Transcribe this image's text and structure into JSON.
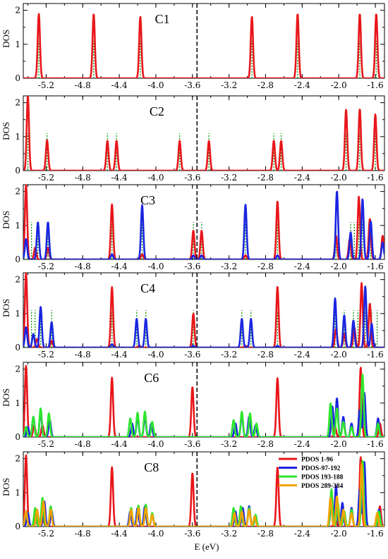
{
  "chart_data": {
    "type": "line",
    "xlabel": "E (eV)",
    "ylabel": "DOS",
    "xlim": [
      -5.45,
      -1.5
    ],
    "ylim": [
      0,
      2.2
    ],
    "xticks": [
      -5.2,
      -4.8,
      -4.4,
      -4.0,
      -3.6,
      -3.2,
      -2.8,
      -2.4,
      -2.0,
      -1.6
    ],
    "xtick_labels": [
      "-5.2",
      "-4.8",
      "-4.4",
      "-4.0",
      "-3.6",
      "-3.2",
      "-2.8",
      "-2.4",
      "-2.0",
      "-1.6"
    ],
    "yticks": [
      0,
      1,
      2
    ],
    "ytick_labels": [
      "0",
      "1",
      "2"
    ],
    "fermi_level": -3.55,
    "colors": {
      "PDOS 1-96": "#e8161b",
      "PDOS-97-192": "#1a25e0",
      "PDOS 193-188": "#2ee62e",
      "PDOS 289-384": "#f5a300",
      "states": "#119911",
      "fermi": "#000000"
    },
    "legend": {
      "placement": "top-right of panel C8",
      "entries": [
        "PDOS 1-96",
        "PDOS-97-192",
        "PDOS 193-188",
        "PDOS 289-384"
      ]
    },
    "panels": [
      {
        "label": "C1",
        "series": [
          {
            "name": "PDOS 1-96",
            "peaks": [
              [
                -5.28,
                1.9
              ],
              [
                -4.68,
                1.9
              ],
              [
                -4.17,
                1.82
              ],
              [
                -2.95,
                1.82
              ],
              [
                -2.45,
                1.9
              ],
              [
                -1.77,
                1.9
              ],
              [
                -1.59,
                1.9
              ]
            ]
          }
        ],
        "states": [
          -5.28,
          -4.68,
          -4.17,
          -2.95,
          -2.45,
          -1.77,
          -1.59
        ]
      },
      {
        "label": "C2",
        "series": [
          {
            "name": "PDOS 1-96",
            "peaks": [
              [
                -5.4,
                2.2
              ],
              [
                -5.19,
                0.9
              ],
              [
                -4.53,
                0.88
              ],
              [
                -4.43,
                0.88
              ],
              [
                -3.74,
                0.88
              ],
              [
                -3.42,
                0.88
              ],
              [
                -2.71,
                0.88
              ],
              [
                -2.63,
                0.88
              ],
              [
                -1.92,
                1.8
              ],
              [
                -1.77,
                1.82
              ],
              [
                -1.6,
                1.66
              ]
            ]
          }
        ],
        "states": [
          -5.4,
          -5.19,
          -4.53,
          -4.43,
          -3.74,
          -3.42,
          -2.71,
          -2.63,
          -1.92,
          -1.77,
          -1.6
        ]
      },
      {
        "label": "C3",
        "series": [
          {
            "name": "PDOS 1-96",
            "peaks": [
              [
                -5.42,
                2.2
              ],
              [
                -5.32,
                0.35
              ],
              [
                -5.18,
                0.35
              ],
              [
                -4.48,
                1.62
              ],
              [
                -4.15,
                0.15
              ],
              [
                -3.59,
                0.85
              ],
              [
                -3.5,
                0.85
              ],
              [
                -3.02,
                0.12
              ],
              [
                -2.67,
                1.72
              ],
              [
                -2.03,
                0.7
              ],
              [
                -1.88,
                0.6
              ],
              [
                -1.78,
                1.85
              ],
              [
                -1.66,
                1.2
              ],
              [
                -1.52,
                0.7
              ]
            ]
          },
          {
            "name": "PDOS-97-192",
            "peaks": [
              [
                -5.42,
                0.6
              ],
              [
                -5.29,
                1.1
              ],
              [
                -5.18,
                1.1
              ],
              [
                -4.48,
                0.15
              ],
              [
                -4.15,
                1.6
              ],
              [
                -3.59,
                0.12
              ],
              [
                -3.5,
                0.12
              ],
              [
                -3.02,
                1.62
              ],
              [
                -2.67,
                0.12
              ],
              [
                -2.02,
                2.02
              ],
              [
                -1.87,
                0.8
              ],
              [
                -1.74,
                1.78
              ],
              [
                -1.65,
                1.12
              ],
              [
                -1.52,
                0.5
              ]
            ]
          }
        ],
        "states": [
          -5.44,
          -5.4,
          -5.36,
          -5.29,
          -5.18,
          -4.48,
          -4.15,
          -3.59,
          -3.5,
          -3.02,
          -2.67,
          -2.03,
          -1.87,
          -1.83,
          -1.78,
          -1.74,
          -1.65
        ]
      },
      {
        "label": "C4",
        "series": [
          {
            "name": "PDOS 1-96",
            "peaks": [
              [
                -5.42,
                2.2
              ],
              [
                -5.3,
                0.25
              ],
              [
                -5.14,
                0.2
              ],
              [
                -4.48,
                1.78
              ],
              [
                -4.18,
                0.05
              ],
              [
                -3.59,
                1.0
              ],
              [
                -3.02,
                0.05
              ],
              [
                -2.67,
                1.8
              ],
              [
                -2.03,
                0.55
              ],
              [
                -1.94,
                0.4
              ],
              [
                -1.83,
                0.6
              ],
              [
                -1.75,
                1.9
              ],
              [
                -1.66,
                1.3
              ]
            ]
          },
          {
            "name": "PDOS-97-192",
            "peaks": [
              [
                -5.42,
                0.6
              ],
              [
                -5.34,
                0.4
              ],
              [
                -5.26,
                1.2
              ],
              [
                -5.14,
                0.75
              ],
              [
                -4.48,
                0.1
              ],
              [
                -4.21,
                0.85
              ],
              [
                -4.11,
                0.85
              ],
              [
                -3.59,
                0.05
              ],
              [
                -3.06,
                0.85
              ],
              [
                -2.96,
                0.85
              ],
              [
                -2.67,
                0.05
              ],
              [
                -2.04,
                1.45
              ],
              [
                -1.94,
                0.95
              ],
              [
                -1.84,
                0.8
              ],
              [
                -1.71,
                1.8
              ],
              [
                -1.64,
                0.7
              ]
            ]
          }
        ],
        "states": [
          -5.44,
          -5.4,
          -5.36,
          -5.32,
          -5.26,
          -5.14,
          -4.48,
          -4.21,
          -4.11,
          -3.59,
          -3.06,
          -2.96,
          -2.67,
          -2.04,
          -1.94,
          -1.84,
          -1.79,
          -1.74,
          -1.71,
          -1.64,
          -1.58
        ]
      },
      {
        "label": "C6",
        "series": [
          {
            "name": "PDOS 1-96",
            "peaks": [
              [
                -5.42,
                2.1
              ],
              [
                -5.33,
                0.35
              ],
              [
                -5.24,
                0.35
              ],
              [
                -4.48,
                1.75
              ],
              [
                -3.6,
                1.48
              ],
              [
                -2.67,
                1.75
              ],
              [
                -2.04,
                0.3
              ],
              [
                -1.76,
                2.05
              ],
              [
                -1.55,
                0.4
              ]
            ]
          },
          {
            "name": "PDOS-97-192",
            "peaks": [
              [
                -5.4,
                0.3
              ],
              [
                -5.34,
                0.6
              ],
              [
                -5.26,
                0.75
              ],
              [
                -5.16,
                0.5
              ],
              [
                -4.26,
                0.4
              ],
              [
                -4.2,
                0.6
              ],
              [
                -4.12,
                0.6
              ],
              [
                -4.05,
                0.4
              ],
              [
                -3.13,
                0.4
              ],
              [
                -3.06,
                0.65
              ],
              [
                -2.98,
                0.6
              ],
              [
                -2.91,
                0.35
              ],
              [
                -2.07,
                0.9
              ],
              [
                -2.02,
                1.15
              ],
              [
                -1.95,
                0.6
              ],
              [
                -1.86,
                0.4
              ],
              [
                -1.77,
                0.8
              ],
              [
                -1.72,
                1.3
              ],
              [
                -1.57,
                0.55
              ]
            ]
          },
          {
            "name": "PDOS 193-188",
            "peaks": [
              [
                -5.42,
                0.3
              ],
              [
                -5.34,
                0.6
              ],
              [
                -5.26,
                0.85
              ],
              [
                -5.17,
                0.7
              ],
              [
                -4.28,
                0.55
              ],
              [
                -4.2,
                0.72
              ],
              [
                -4.12,
                0.75
              ],
              [
                -4.04,
                0.45
              ],
              [
                -3.15,
                0.5
              ],
              [
                -3.06,
                0.75
              ],
              [
                -2.97,
                0.7
              ],
              [
                -2.9,
                0.4
              ],
              [
                -2.09,
                1.0
              ],
              [
                -2.02,
                0.85
              ],
              [
                -1.95,
                0.45
              ],
              [
                -1.86,
                0.3
              ],
              [
                -1.74,
                1.85
              ],
              [
                -1.57,
                0.4
              ]
            ]
          }
        ],
        "states": []
      },
      {
        "label": "C8",
        "series": [
          {
            "name": "PDOS 1-96",
            "peaks": [
              [
                -5.42,
                2.1
              ],
              [
                -5.32,
                0.35
              ],
              [
                -5.24,
                0.35
              ],
              [
                -4.48,
                1.75
              ],
              [
                -3.6,
                1.58
              ],
              [
                -2.67,
                1.75
              ],
              [
                -2.04,
                0.3
              ],
              [
                -1.76,
                2.05
              ],
              [
                -1.55,
                0.6
              ]
            ]
          },
          {
            "name": "PDOS-97-192",
            "peaks": [
              [
                -5.4,
                0.4
              ],
              [
                -5.3,
                0.5
              ],
              [
                -5.22,
                0.75
              ],
              [
                -5.14,
                0.45
              ],
              [
                -4.28,
                0.45
              ],
              [
                -4.2,
                0.55
              ],
              [
                -4.12,
                0.6
              ],
              [
                -4.04,
                0.35
              ],
              [
                -3.13,
                0.45
              ],
              [
                -3.05,
                0.55
              ],
              [
                -2.98,
                0.6
              ],
              [
                -2.91,
                0.3
              ],
              [
                -2.08,
                0.8
              ],
              [
                -2.03,
                1.2
              ],
              [
                -1.96,
                0.7
              ],
              [
                -1.86,
                0.55
              ],
              [
                -1.77,
                1.1
              ],
              [
                -1.72,
                1.9
              ],
              [
                -1.56,
                0.5
              ]
            ]
          },
          {
            "name": "PDOS 193-188",
            "peaks": [
              [
                -5.42,
                0.45
              ],
              [
                -5.32,
                0.55
              ],
              [
                -5.24,
                0.85
              ],
              [
                -5.15,
                0.6
              ],
              [
                -4.27,
                0.55
              ],
              [
                -4.19,
                0.62
              ],
              [
                -4.11,
                0.65
              ],
              [
                -4.04,
                0.4
              ],
              [
                -3.15,
                0.55
              ],
              [
                -3.07,
                0.6
              ],
              [
                -2.98,
                0.55
              ],
              [
                -2.91,
                0.35
              ],
              [
                -2.08,
                1.1
              ],
              [
                -2.01,
                0.7
              ],
              [
                -1.94,
                0.45
              ],
              [
                -1.86,
                0.5
              ],
              [
                -1.74,
                1.95
              ],
              [
                -1.56,
                0.45
              ]
            ]
          },
          {
            "name": "PDOS 289-384",
            "peaks": [
              [
                -5.42,
                0.45
              ],
              [
                -5.3,
                0.5
              ],
              [
                -5.23,
                0.75
              ],
              [
                -5.15,
                0.5
              ],
              [
                -4.27,
                0.5
              ],
              [
                -4.19,
                0.55
              ],
              [
                -4.11,
                0.55
              ],
              [
                -4.04,
                0.35
              ],
              [
                -3.14,
                0.4
              ],
              [
                -3.06,
                0.45
              ],
              [
                -2.98,
                0.5
              ],
              [
                -2.92,
                0.3
              ],
              [
                -2.09,
                0.85
              ],
              [
                -2.02,
                0.9
              ],
              [
                -1.95,
                0.5
              ],
              [
                -1.86,
                0.4
              ],
              [
                -1.75,
                1.85
              ],
              [
                -1.58,
                0.4
              ]
            ]
          }
        ],
        "states": []
      }
    ]
  }
}
